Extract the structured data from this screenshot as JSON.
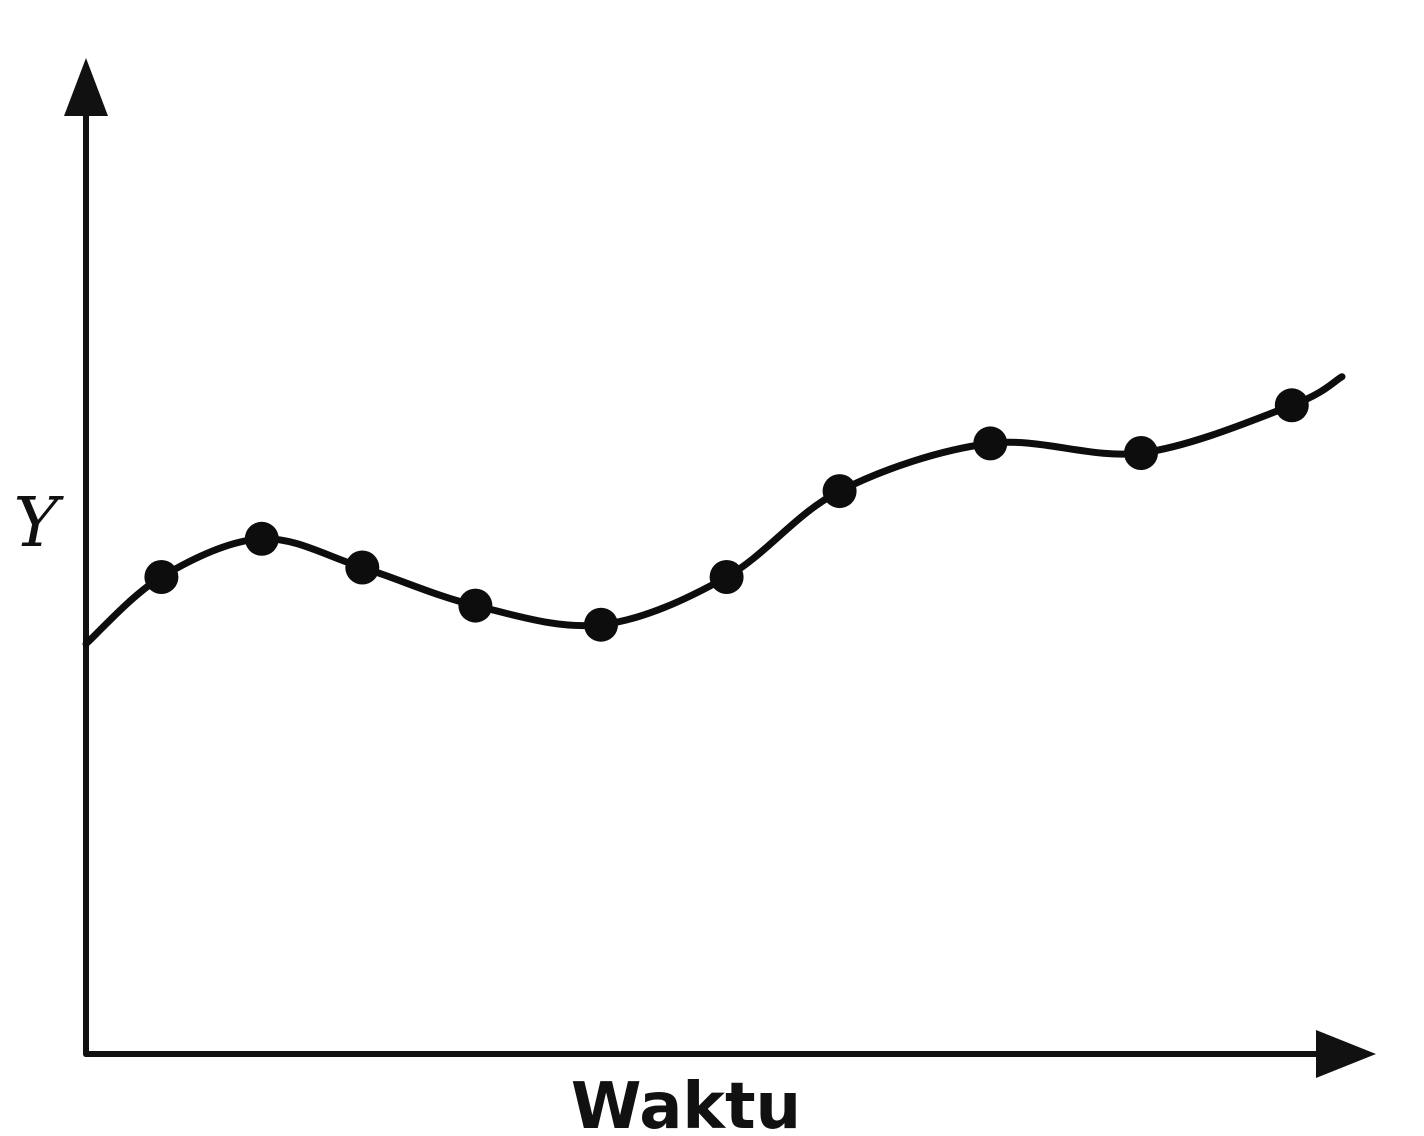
{
  "chart_data": {
    "type": "line",
    "xlabel": "Waktu",
    "ylabel": "Y",
    "grid": false,
    "legend": "none",
    "line_color": "#0d0d0d",
    "axis_color": "#111111",
    "series": [
      {
        "name": "",
        "x": [
          0,
          0.6,
          1.4,
          2.2,
          3.1,
          4.1,
          5.1,
          6.0,
          7.2,
          8.4,
          9.6,
          10.0
        ],
        "y": [
          4.3,
          5.0,
          5.4,
          5.1,
          4.7,
          4.5,
          5.0,
          5.9,
          6.4,
          6.3,
          6.8,
          7.1
        ],
        "markers": [
          false,
          true,
          true,
          true,
          true,
          true,
          true,
          true,
          true,
          true,
          true,
          false
        ]
      }
    ],
    "xlim": [
      0,
      10
    ],
    "ylim": [
      0,
      10
    ]
  }
}
